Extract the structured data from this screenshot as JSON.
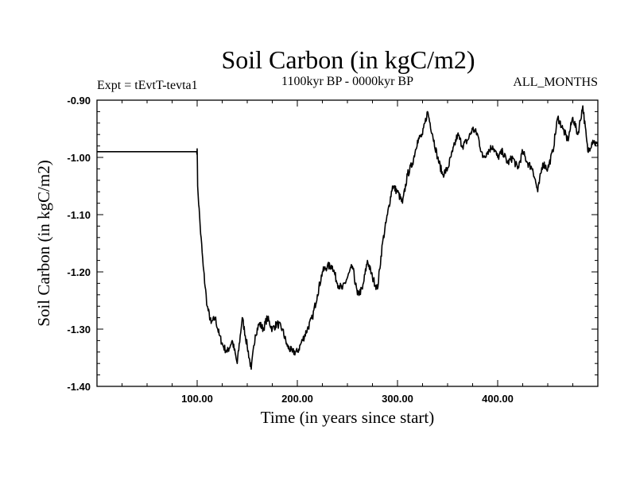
{
  "chart_data": {
    "type": "line",
    "title": "Soil Carbon (in kgC/m2)",
    "subtitle_left": "Expt = tEvtT-tevta1",
    "subtitle_center": "1100kyr BP - 0000kyr BP",
    "subtitle_right": "ALL_MONTHS",
    "xlabel": "Time (in years since start)",
    "ylabel": "Soil Carbon (in kgC/m2)",
    "xlim": [
      0,
      500
    ],
    "ylim": [
      -1.4,
      -0.9
    ],
    "x_ticks": [
      100,
      200,
      300,
      400
    ],
    "x_tick_labels": [
      "100.00",
      "200.00",
      "300.00",
      "400.00"
    ],
    "y_ticks": [
      -0.9,
      -1.0,
      -1.1,
      -1.2,
      -1.3,
      -1.4
    ],
    "y_tick_labels": [
      "-0.90",
      "-1.00",
      "-1.10",
      "-1.20",
      "-1.30",
      "-1.40"
    ],
    "series": [
      {
        "name": "Soil Carbon",
        "color": "#000000",
        "x": [
          0,
          99.5,
          100,
          100.5,
          103,
          106,
          110,
          114,
          118,
          122,
          126,
          130,
          135,
          140,
          145,
          150,
          154,
          158,
          162,
          166,
          170,
          175,
          180,
          185,
          190,
          195,
          200,
          205,
          210,
          215,
          220,
          225,
          230,
          235,
          240,
          245,
          250,
          255,
          260,
          265,
          270,
          275,
          280,
          285,
          290,
          295,
          300,
          305,
          310,
          315,
          320,
          325,
          330,
          335,
          340,
          345,
          350,
          355,
          360,
          365,
          370,
          375,
          380,
          385,
          390,
          395,
          400,
          405,
          410,
          415,
          420,
          425,
          430,
          435,
          440,
          445,
          450,
          455,
          460,
          465,
          470,
          475,
          480,
          485,
          490,
          495,
          500
        ],
        "y": [
          -0.99,
          -0.99,
          -0.985,
          -1.05,
          -1.12,
          -1.19,
          -1.26,
          -1.29,
          -1.28,
          -1.31,
          -1.33,
          -1.34,
          -1.32,
          -1.36,
          -1.28,
          -1.33,
          -1.37,
          -1.31,
          -1.29,
          -1.3,
          -1.28,
          -1.3,
          -1.29,
          -1.3,
          -1.33,
          -1.34,
          -1.34,
          -1.32,
          -1.3,
          -1.28,
          -1.24,
          -1.2,
          -1.19,
          -1.19,
          -1.22,
          -1.23,
          -1.21,
          -1.19,
          -1.24,
          -1.23,
          -1.18,
          -1.21,
          -1.23,
          -1.15,
          -1.1,
          -1.05,
          -1.06,
          -1.08,
          -1.03,
          -1.01,
          -0.97,
          -0.96,
          -0.92,
          -0.96,
          -1.0,
          -1.03,
          -1.02,
          -0.99,
          -0.96,
          -0.98,
          -0.97,
          -0.95,
          -0.96,
          -1.0,
          -0.99,
          -0.98,
          -1.0,
          -0.99,
          -1.01,
          -1.0,
          -1.02,
          -0.99,
          -1.01,
          -1.02,
          -1.06,
          -1.01,
          -1.02,
          -0.99,
          -0.93,
          -0.95,
          -0.97,
          -0.93,
          -0.96,
          -0.91,
          -0.99,
          -0.97,
          -0.98
        ]
      }
    ]
  }
}
